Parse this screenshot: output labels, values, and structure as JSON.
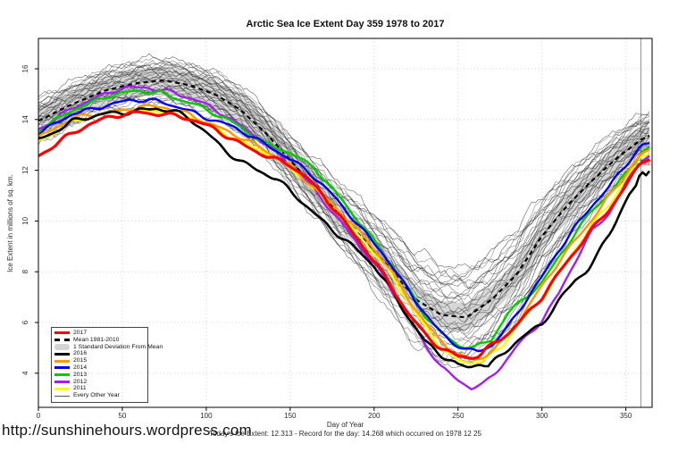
{
  "page": {
    "title": "Arctic Sea Ice Extent Day 359 1978 to 2017",
    "url_watermark": "http://sunshinehours.wordpress.com",
    "footnote": "Today's Ice Extent: 12.313  - Record for the day: 14.268 which occurred on 1978 12 25"
  },
  "chart_data": {
    "type": "line",
    "title": "Arctic Sea Ice Extent Day 359 1978 to 2017",
    "xlabel": "Day of Year",
    "ylabel": "Ice Extent in millions of sq. km.",
    "xlim": [
      0,
      365
    ],
    "ylim": [
      2.6,
      17.2
    ],
    "x_ticks": [
      0,
      50,
      100,
      150,
      200,
      250,
      300,
      350
    ],
    "y_ticks": [
      4,
      6,
      8,
      10,
      12,
      14,
      16
    ],
    "grid": true,
    "legend_position": "bottom-left",
    "marker_day": 359,
    "todays_extent": 12.313,
    "todays_extent_label": "12.313",
    "record_for_day": 14.268,
    "record_date": "1978 12 25",
    "std_dev_band": 0.55,
    "band_color": "#d6d6d6",
    "other_years": {
      "label": "Every Other Year",
      "count": 31,
      "color": "#333333"
    },
    "series": [
      {
        "name": "Mean 1981-2010",
        "color": "#000000",
        "width": 2.2,
        "dash": "5 4",
        "noise": 0,
        "points": [
          [
            0,
            13.95
          ],
          [
            20,
            14.6
          ],
          [
            40,
            15.15
          ],
          [
            60,
            15.45
          ],
          [
            75,
            15.55
          ],
          [
            90,
            15.35
          ],
          [
            105,
            15.0
          ],
          [
            120,
            14.4
          ],
          [
            135,
            13.5
          ],
          [
            150,
            12.4
          ],
          [
            165,
            11.3
          ],
          [
            180,
            10.2
          ],
          [
            195,
            9.2
          ],
          [
            210,
            8.1
          ],
          [
            225,
            6.9
          ],
          [
            240,
            6.3
          ],
          [
            255,
            6.2
          ],
          [
            270,
            6.9
          ],
          [
            285,
            7.9
          ],
          [
            300,
            9.4
          ],
          [
            315,
            10.6
          ],
          [
            330,
            11.6
          ],
          [
            345,
            12.5
          ],
          [
            359,
            13.2
          ],
          [
            365,
            13.4
          ]
        ]
      },
      {
        "name": "2011",
        "color": "#ffff00",
        "width": 2.4,
        "noise": 0.06,
        "points": [
          [
            0,
            13.2
          ],
          [
            20,
            13.9
          ],
          [
            40,
            14.2
          ],
          [
            60,
            14.4
          ],
          [
            75,
            14.35
          ],
          [
            90,
            14.1
          ],
          [
            105,
            13.7
          ],
          [
            120,
            13.2
          ],
          [
            135,
            12.7
          ],
          [
            150,
            12.1
          ],
          [
            165,
            11.2
          ],
          [
            180,
            10.2
          ],
          [
            195,
            9.1
          ],
          [
            210,
            7.9
          ],
          [
            220,
            6.9
          ],
          [
            230,
            5.9
          ],
          [
            240,
            5.0
          ],
          [
            250,
            4.45
          ],
          [
            257,
            4.35
          ],
          [
            265,
            4.5
          ],
          [
            275,
            5.0
          ],
          [
            285,
            5.9
          ],
          [
            300,
            6.9
          ],
          [
            310,
            7.9
          ],
          [
            320,
            8.9
          ],
          [
            330,
            9.9
          ],
          [
            340,
            10.7
          ],
          [
            350,
            11.6
          ],
          [
            359,
            12.5
          ],
          [
            365,
            12.7
          ]
        ]
      },
      {
        "name": "2012",
        "color": "#a020f0",
        "width": 2.4,
        "noise": 0.06,
        "points": [
          [
            0,
            13.6
          ],
          [
            20,
            14.5
          ],
          [
            50,
            15.2
          ],
          [
            65,
            15.3
          ],
          [
            80,
            15.1
          ],
          [
            95,
            14.7
          ],
          [
            110,
            14.2
          ],
          [
            125,
            13.6
          ],
          [
            140,
            12.8
          ],
          [
            155,
            11.9
          ],
          [
            170,
            10.8
          ],
          [
            185,
            9.6
          ],
          [
            200,
            8.3
          ],
          [
            210,
            7.3
          ],
          [
            220,
            6.2
          ],
          [
            230,
            5.2
          ],
          [
            240,
            4.3
          ],
          [
            250,
            3.7
          ],
          [
            258,
            3.4
          ],
          [
            265,
            3.5
          ],
          [
            275,
            4.2
          ],
          [
            285,
            5.1
          ],
          [
            300,
            6.1
          ],
          [
            310,
            7.1
          ],
          [
            320,
            8.4
          ],
          [
            330,
            9.6
          ],
          [
            340,
            10.35
          ],
          [
            350,
            11.5
          ],
          [
            359,
            12.4
          ],
          [
            365,
            12.6
          ]
        ]
      },
      {
        "name": "2013",
        "color": "#00cc00",
        "width": 2.4,
        "noise": 0.06,
        "points": [
          [
            0,
            13.5
          ],
          [
            20,
            14.4
          ],
          [
            40,
            14.9
          ],
          [
            60,
            15.1
          ],
          [
            75,
            15.05
          ],
          [
            90,
            14.7
          ],
          [
            105,
            14.2
          ],
          [
            120,
            13.7
          ],
          [
            135,
            13.1
          ],
          [
            150,
            12.7
          ],
          [
            165,
            12.0
          ],
          [
            180,
            10.9
          ],
          [
            195,
            9.7
          ],
          [
            210,
            8.3
          ],
          [
            220,
            7.3
          ],
          [
            230,
            6.3
          ],
          [
            240,
            5.6
          ],
          [
            250,
            5.15
          ],
          [
            260,
            5.0
          ],
          [
            270,
            5.3
          ],
          [
            280,
            6.35
          ],
          [
            290,
            7.0
          ],
          [
            300,
            7.6
          ],
          [
            310,
            8.6
          ],
          [
            320,
            9.5
          ],
          [
            330,
            10.4
          ],
          [
            340,
            11.05
          ],
          [
            350,
            11.9
          ],
          [
            359,
            12.75
          ],
          [
            365,
            12.9
          ]
        ]
      },
      {
        "name": "2014",
        "color": "#0000ee",
        "width": 2.4,
        "noise": 0.06,
        "points": [
          [
            0,
            13.4
          ],
          [
            20,
            14.2
          ],
          [
            40,
            14.6
          ],
          [
            55,
            14.75
          ],
          [
            70,
            14.7
          ],
          [
            85,
            14.5
          ],
          [
            100,
            14.1
          ],
          [
            115,
            13.7
          ],
          [
            130,
            13.2
          ],
          [
            145,
            12.7
          ],
          [
            160,
            12.0
          ],
          [
            175,
            11.0
          ],
          [
            190,
            9.9
          ],
          [
            205,
            8.8
          ],
          [
            215,
            7.8
          ],
          [
            225,
            6.8
          ],
          [
            235,
            5.9
          ],
          [
            245,
            5.3
          ],
          [
            255,
            4.95
          ],
          [
            262,
            4.9
          ],
          [
            270,
            5.1
          ],
          [
            280,
            5.8
          ],
          [
            290,
            6.8
          ],
          [
            300,
            7.8
          ],
          [
            310,
            8.9
          ],
          [
            320,
            9.8
          ],
          [
            330,
            10.6
          ],
          [
            340,
            11.3
          ],
          [
            350,
            12.2
          ],
          [
            359,
            13.0
          ],
          [
            365,
            13.1
          ]
        ]
      },
      {
        "name": "2015",
        "color": "#ff9900",
        "width": 2.4,
        "noise": 0.06,
        "points": [
          [
            0,
            13.3
          ],
          [
            20,
            14.0
          ],
          [
            40,
            14.3
          ],
          [
            60,
            14.5
          ],
          [
            75,
            14.45
          ],
          [
            90,
            14.2
          ],
          [
            105,
            13.8
          ],
          [
            120,
            13.3
          ],
          [
            135,
            12.75
          ],
          [
            150,
            12.2
          ],
          [
            165,
            11.3
          ],
          [
            180,
            10.3
          ],
          [
            195,
            9.3
          ],
          [
            210,
            8.1
          ],
          [
            220,
            7.0
          ],
          [
            230,
            6.0
          ],
          [
            240,
            5.2
          ],
          [
            250,
            4.7
          ],
          [
            257,
            4.55
          ],
          [
            265,
            4.65
          ],
          [
            275,
            5.2
          ],
          [
            285,
            5.9
          ],
          [
            300,
            7.4
          ],
          [
            310,
            8.4
          ],
          [
            320,
            9.3
          ],
          [
            330,
            10.1
          ],
          [
            340,
            10.95
          ],
          [
            350,
            11.8
          ],
          [
            359,
            12.6
          ],
          [
            365,
            12.8
          ]
        ]
      },
      {
        "name": "2016",
        "color": "#000000",
        "width": 2.6,
        "noise": 0.07,
        "points": [
          [
            0,
            13.25
          ],
          [
            20,
            13.9
          ],
          [
            40,
            14.2
          ],
          [
            60,
            14.4
          ],
          [
            70,
            14.45
          ],
          [
            80,
            14.3
          ],
          [
            90,
            14.0
          ],
          [
            100,
            13.5
          ],
          [
            110,
            12.9
          ],
          [
            120,
            12.4
          ],
          [
            130,
            12.0
          ],
          [
            142,
            11.6
          ],
          [
            155,
            10.9
          ],
          [
            170,
            10.0
          ],
          [
            185,
            9.1
          ],
          [
            200,
            8.2
          ],
          [
            210,
            7.3
          ],
          [
            220,
            6.3
          ],
          [
            230,
            5.3
          ],
          [
            240,
            4.7
          ],
          [
            250,
            4.25
          ],
          [
            257,
            4.2
          ],
          [
            263,
            4.4
          ],
          [
            268,
            4.3
          ],
          [
            275,
            4.7
          ],
          [
            283,
            5.2
          ],
          [
            290,
            5.5
          ],
          [
            300,
            5.9
          ],
          [
            310,
            6.8
          ],
          [
            320,
            7.7
          ],
          [
            327,
            8.1
          ],
          [
            333,
            8.7
          ],
          [
            340,
            9.5
          ],
          [
            347,
            10.4
          ],
          [
            352,
            11.0
          ],
          [
            356,
            11.3
          ],
          [
            359,
            11.85
          ],
          [
            362,
            11.75
          ],
          [
            365,
            12.1
          ]
        ]
      },
      {
        "name": "2017",
        "color": "#ff0000",
        "width": 3.2,
        "noise": 0.06,
        "points": [
          [
            0,
            12.55
          ],
          [
            15,
            13.3
          ],
          [
            30,
            13.8
          ],
          [
            45,
            14.1
          ],
          [
            60,
            14.3
          ],
          [
            75,
            14.25
          ],
          [
            90,
            14.0
          ],
          [
            105,
            13.6
          ],
          [
            120,
            13.1
          ],
          [
            135,
            12.6
          ],
          [
            150,
            12.15
          ],
          [
            160,
            11.7
          ],
          [
            170,
            11.0
          ],
          [
            180,
            10.2
          ],
          [
            190,
            9.3
          ],
          [
            200,
            8.4
          ],
          [
            210,
            7.4
          ],
          [
            220,
            6.4
          ],
          [
            230,
            5.6
          ],
          [
            240,
            5.0
          ],
          [
            250,
            4.65
          ],
          [
            257,
            4.58
          ],
          [
            263,
            4.65
          ],
          [
            270,
            5.1
          ],
          [
            280,
            5.6
          ],
          [
            290,
            6.3
          ],
          [
            300,
            7.0
          ],
          [
            310,
            7.9
          ],
          [
            320,
            8.8
          ],
          [
            330,
            9.7
          ],
          [
            340,
            10.5
          ],
          [
            350,
            11.4
          ],
          [
            359,
            12.31
          ],
          [
            365,
            12.5
          ]
        ]
      }
    ],
    "legend": [
      {
        "label": "2017",
        "color": "#ff0000",
        "style": "thick"
      },
      {
        "label": "Mean 1981-2010",
        "color": "#000000",
        "style": "dashed"
      },
      {
        "label": "1 Standard Deviation From Mean",
        "color": "#d3d3d3",
        "style": "band"
      },
      {
        "label": "2016",
        "color": "#000000",
        "style": "thick"
      },
      {
        "label": "2015",
        "color": "#ff9900",
        "style": "thick"
      },
      {
        "label": "2014",
        "color": "#0000ee",
        "style": "thick"
      },
      {
        "label": "2013",
        "color": "#00cc00",
        "style": "thick"
      },
      {
        "label": "2012",
        "color": "#a020f0",
        "style": "thick"
      },
      {
        "label": "2011",
        "color": "#ffff00",
        "style": "thick"
      },
      {
        "label": "Every Other Year",
        "color": "#555555",
        "style": "thin"
      }
    ]
  }
}
